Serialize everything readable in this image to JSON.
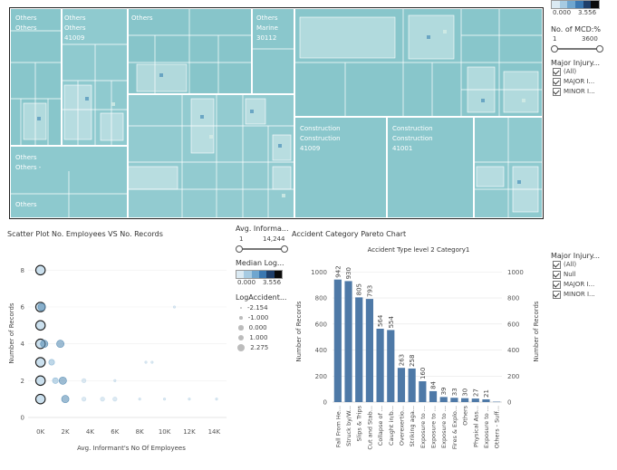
{
  "treemap": {
    "labels": [
      {
        "text": "Others\nOthers"
      },
      {
        "text": "Others\nOthers\n41009"
      },
      {
        "text": "Others"
      },
      {
        "text": "Others\nMarine\n30112"
      },
      {
        "text": "Others\nOthers -"
      },
      {
        "text": "Others"
      },
      {
        "text": "Construction\nConstruction\n41009"
      },
      {
        "text": "Construction\nConstruction\n41001"
      }
    ]
  },
  "top_right": {
    "color_min": "0.000",
    "color_max": "3.556",
    "mcd_title": "No. of MCD:%",
    "mcd_min": "1",
    "mcd_max": "3600",
    "injury_title": "Major Injury...",
    "injury_items": [
      "(All)",
      "MAJOR I...",
      "MINOR I..."
    ]
  },
  "scatter": {
    "title": "Scatter Plot No. Employees VS No. Records",
    "xlabel": "Avg. Informant's No Of Employees",
    "ylabel": "Number of Records",
    "xticks": [
      "0K",
      "2K",
      "4K",
      "6K",
      "8K",
      "10K",
      "12K",
      "14K"
    ],
    "yticks": [
      "0",
      "2",
      "4",
      "6",
      "8"
    ]
  },
  "middle_panel": {
    "avg_title": "Avg. Informa...",
    "avg_min": "1",
    "avg_max": "14,244",
    "median_title": "Median Log...",
    "median_min": "0.000",
    "median_max": "3.556",
    "log_title": "LogAccident...",
    "log_items": [
      "-2.154",
      "-1.000",
      "0.000",
      "1.000",
      "2.275"
    ]
  },
  "pareto": {
    "title": "Accident Category Pareto Chart",
    "subtitle": "Accident Type level 2 Category1",
    "ylabel_left": "Number of Records",
    "ylabel_right": "Number of Records",
    "yticks": [
      "0",
      "200",
      "400",
      "600",
      "800",
      "1000"
    ]
  },
  "bottom_right": {
    "injury_title": "Major Injury...",
    "injury_items": [
      "(All)",
      "Null",
      "MAJOR I...",
      "MINOR I..."
    ]
  },
  "chart_data": [
    {
      "type": "bar",
      "title": "Accident Category Pareto Chart",
      "subtitle": "Accident Type level 2 Category1",
      "categories": [
        "Fall From He...",
        "Struck by/W...",
        "Slips & Trips",
        "Cut and Stab...",
        "Collapse of ...",
        "Caught in/b...",
        "Overexertio...",
        "Striking aga...",
        "Exposure to ...",
        "Exposure to ...",
        "Exposure to ...",
        "Fires & Explo...",
        "Others",
        "Physical Ass...",
        "Exposure to ...",
        "Others - Suff..."
      ],
      "values": [
        942,
        930,
        805,
        793,
        564,
        554,
        263,
        258,
        160,
        84,
        39,
        33,
        30,
        27,
        21,
        3
      ],
      "value_labels": [
        "942",
        "930",
        "805",
        "793",
        "564",
        "554",
        "263",
        "258",
        "160",
        "84",
        "39",
        "33",
        "30",
        "27",
        "21",
        ""
      ],
      "ylabel": "Number of Records",
      "ylim": [
        0,
        1100
      ],
      "color": "#4e79a7"
    },
    {
      "type": "scatter",
      "title": "Scatter Plot No. Employees VS No. Records",
      "xlabel": "Avg. Informant's No Of Employees",
      "ylabel": "Number of Records",
      "xlim": [
        -1000,
        15000
      ],
      "ylim": [
        0,
        9
      ],
      "points": [
        {
          "x": 0,
          "y": 8,
          "r": 2.275
        },
        {
          "x": 0,
          "y": 6,
          "r": 2.275
        },
        {
          "x": 100,
          "y": 6,
          "r": 1.0
        },
        {
          "x": 0,
          "y": 5,
          "r": 2.275
        },
        {
          "x": 0,
          "y": 4,
          "r": 2.275
        },
        {
          "x": 300,
          "y": 4,
          "r": 1.0
        },
        {
          "x": 1600,
          "y": 4,
          "r": 1.0
        },
        {
          "x": 0,
          "y": 3,
          "r": 2.275
        },
        {
          "x": 900,
          "y": 3,
          "r": 0.0
        },
        {
          "x": 0,
          "y": 2,
          "r": 2.275
        },
        {
          "x": 1800,
          "y": 2,
          "r": 1.0
        },
        {
          "x": 1200,
          "y": 2,
          "r": 0.0
        },
        {
          "x": 0,
          "y": 1,
          "r": 2.275
        },
        {
          "x": 2000,
          "y": 1,
          "r": 1.0
        },
        {
          "x": 3500,
          "y": 1,
          "r": -1.0
        },
        {
          "x": 5000,
          "y": 1,
          "r": -1.0
        },
        {
          "x": 6000,
          "y": 1,
          "r": -1.0
        },
        {
          "x": 8000,
          "y": 1,
          "r": -2.154
        },
        {
          "x": 10000,
          "y": 1,
          "r": -2.154
        },
        {
          "x": 12000,
          "y": 1,
          "r": -2.154
        },
        {
          "x": 14200,
          "y": 1,
          "r": -2.154
        },
        {
          "x": 10800,
          "y": 6,
          "r": -2.154
        },
        {
          "x": 8500,
          "y": 3,
          "r": -2.154
        },
        {
          "x": 9000,
          "y": 3,
          "r": -2.154
        },
        {
          "x": 3500,
          "y": 2,
          "r": -1.0
        },
        {
          "x": 6000,
          "y": 2,
          "r": -2.154
        }
      ]
    }
  ]
}
